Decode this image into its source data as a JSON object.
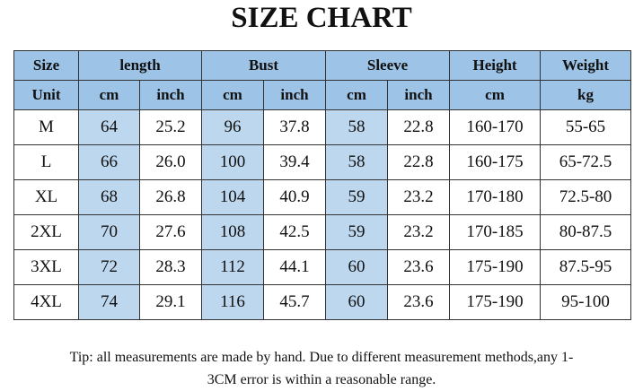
{
  "title": "SIZE CHART",
  "table": {
    "groups": [
      "Size",
      "length",
      "Bust",
      "Sleeve",
      "Height",
      "Weight"
    ],
    "units": [
      "Unit",
      "cm",
      "inch",
      "cm",
      "inch",
      "cm",
      "inch",
      "cm",
      "kg"
    ],
    "rows": [
      [
        "M",
        "64",
        "25.2",
        "96",
        "37.8",
        "58",
        "22.8",
        "160-170",
        "55-65"
      ],
      [
        "L",
        "66",
        "26.0",
        "100",
        "39.4",
        "58",
        "22.8",
        "160-175",
        "65-72.5"
      ],
      [
        "XL",
        "68",
        "26.8",
        "104",
        "40.9",
        "59",
        "23.2",
        "170-180",
        "72.5-80"
      ],
      [
        "2XL",
        "70",
        "27.6",
        "108",
        "42.5",
        "59",
        "23.2",
        "170-185",
        "80-87.5"
      ],
      [
        "3XL",
        "72",
        "28.3",
        "112",
        "44.1",
        "60",
        "23.6",
        "175-190",
        "87.5-95"
      ],
      [
        "4XL",
        "74",
        "29.1",
        "116",
        "45.7",
        "60",
        "23.6",
        "175-190",
        "95-100"
      ]
    ]
  },
  "tip": [
    "Tip: all measurements are made by hand. Due to different measurement methods,any 1-",
    "3CM error is within a reasonable range."
  ]
}
